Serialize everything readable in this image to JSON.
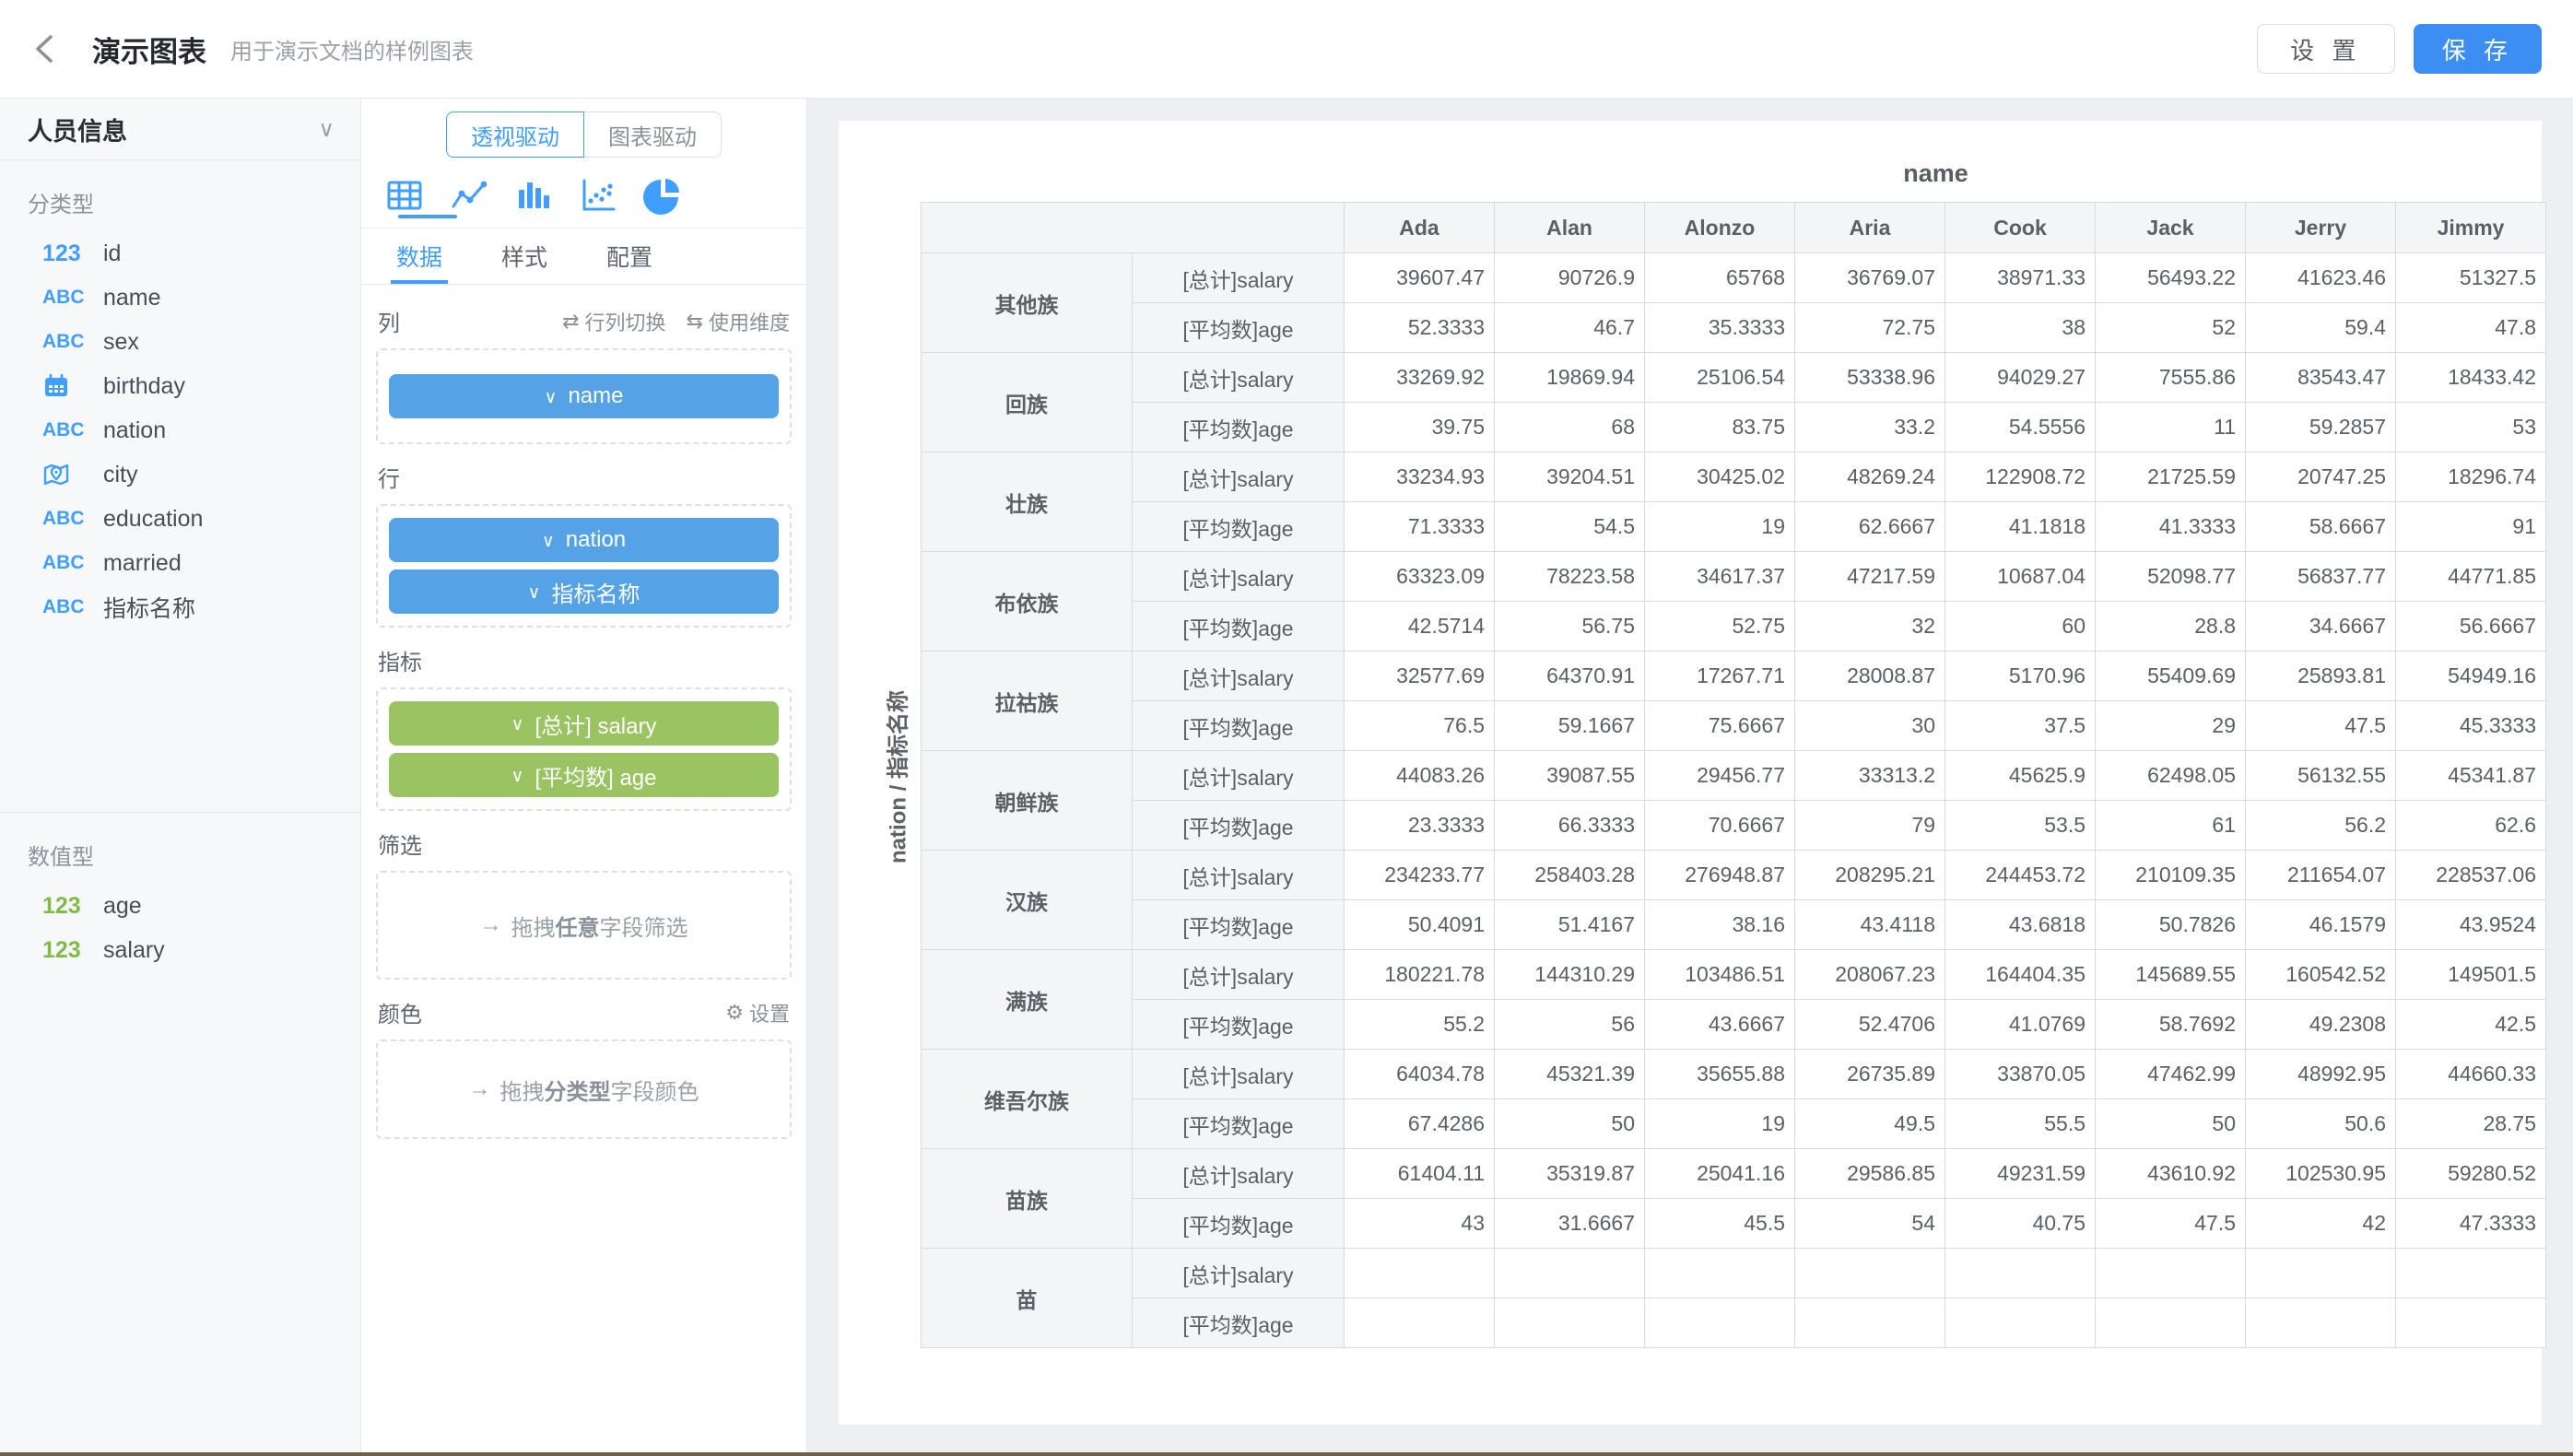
{
  "header": {
    "title": "演示图表",
    "subtitle": "用于演示文档的样例图表",
    "settings_label": "设 置",
    "save_label": "保 存"
  },
  "icons": {
    "chevron_down": "∨",
    "swap_rows_cols": "⇄",
    "use_dimension": "⇆",
    "drag_arrow": "→",
    "gear": "⚙"
  },
  "colors": {
    "accent_blue": "#409eff",
    "save_blue": "#3d8ef2",
    "pill_blue": "#56a2e6",
    "pill_green": "#9ac362",
    "numeric_green": "#7ebc47"
  },
  "dataset_panel": {
    "name": "人员信息",
    "sections": [
      {
        "label": "分类型",
        "tint": "blue",
        "fields": [
          {
            "icon": "numeric-icon",
            "name": "id"
          },
          {
            "icon": "text-icon",
            "name": "name"
          },
          {
            "icon": "text-icon",
            "name": "sex"
          },
          {
            "icon": "calendar-icon",
            "name": "birthday"
          },
          {
            "icon": "text-icon",
            "name": "nation"
          },
          {
            "icon": "location-icon",
            "name": "city"
          },
          {
            "icon": "text-icon",
            "name": "education"
          },
          {
            "icon": "text-icon",
            "name": "married"
          },
          {
            "icon": "text-icon",
            "name": "指标名称"
          }
        ]
      },
      {
        "label": "数值型",
        "tint": "green",
        "fields": [
          {
            "icon": "numeric-icon",
            "name": "age"
          },
          {
            "icon": "numeric-icon",
            "name": "salary"
          }
        ]
      }
    ]
  },
  "config_panel": {
    "mode_toggle": {
      "options": [
        "透视驱动",
        "图表驱动"
      ],
      "active": "透视驱动"
    },
    "chart_types": [
      "table",
      "line",
      "bar",
      "scatter",
      "pie"
    ],
    "active_chart_type": "table",
    "tabs": {
      "options": [
        "数据",
        "样式",
        "配置"
      ],
      "active": "数据"
    },
    "sections": {
      "columns": {
        "label": "列",
        "actions": [
          "行列切换",
          "使用维度"
        ],
        "pills": [
          {
            "text": "name",
            "color": "blue"
          }
        ]
      },
      "rows": {
        "label": "行",
        "pills": [
          {
            "text": "nation",
            "color": "blue"
          },
          {
            "text": "指标名称",
            "color": "blue"
          }
        ]
      },
      "metrics": {
        "label": "指标",
        "pills": [
          {
            "text": "[总计] salary",
            "color": "green"
          },
          {
            "text": "[平均数] age",
            "color": "green"
          }
        ]
      },
      "filter": {
        "label": "筛选",
        "placeholder_parts": [
          "拖拽",
          "任意",
          "字段筛选"
        ]
      },
      "color": {
        "label": "颜色",
        "action": "设置",
        "placeholder_parts": [
          "拖拽",
          "分类型",
          "字段颜色"
        ]
      }
    }
  },
  "chart_data": {
    "type": "table",
    "title": "name",
    "row_axis_label": "nation / 指标名称",
    "columns": [
      "Ada",
      "Alan",
      "Alonzo",
      "Aria",
      "Cook",
      "Jack",
      "Jerry",
      "Jimmy"
    ],
    "metric_labels": [
      "[总计]salary",
      "[平均数]age"
    ],
    "groups": [
      {
        "nation": "其他族",
        "salary": [
          "39607.47",
          "90726.9",
          "65768",
          "36769.07",
          "38971.33",
          "56493.22",
          "41623.46",
          "51327.5"
        ],
        "age": [
          "52.3333",
          "46.7",
          "35.3333",
          "72.75",
          "38",
          "52",
          "59.4",
          "47.8"
        ]
      },
      {
        "nation": "回族",
        "salary": [
          "33269.92",
          "19869.94",
          "25106.54",
          "53338.96",
          "94029.27",
          "7555.86",
          "83543.47",
          "18433.42"
        ],
        "age": [
          "39.75",
          "68",
          "83.75",
          "33.2",
          "54.5556",
          "11",
          "59.2857",
          "53"
        ]
      },
      {
        "nation": "壮族",
        "salary": [
          "33234.93",
          "39204.51",
          "30425.02",
          "48269.24",
          "122908.72",
          "21725.59",
          "20747.25",
          "18296.74"
        ],
        "age": [
          "71.3333",
          "54.5",
          "19",
          "62.6667",
          "41.1818",
          "41.3333",
          "58.6667",
          "91"
        ]
      },
      {
        "nation": "布依族",
        "salary": [
          "63323.09",
          "78223.58",
          "34617.37",
          "47217.59",
          "10687.04",
          "52098.77",
          "56837.77",
          "44771.85"
        ],
        "age": [
          "42.5714",
          "56.75",
          "52.75",
          "32",
          "60",
          "28.8",
          "34.6667",
          "56.6667"
        ]
      },
      {
        "nation": "拉祜族",
        "salary": [
          "32577.69",
          "64370.91",
          "17267.71",
          "28008.87",
          "5170.96",
          "55409.69",
          "25893.81",
          "54949.16"
        ],
        "age": [
          "76.5",
          "59.1667",
          "75.6667",
          "30",
          "37.5",
          "29",
          "47.5",
          "45.3333"
        ]
      },
      {
        "nation": "朝鲜族",
        "salary": [
          "44083.26",
          "39087.55",
          "29456.77",
          "33313.2",
          "45625.9",
          "62498.05",
          "56132.55",
          "45341.87"
        ],
        "age": [
          "23.3333",
          "66.3333",
          "70.6667",
          "79",
          "53.5",
          "61",
          "56.2",
          "62.6"
        ]
      },
      {
        "nation": "汉族",
        "salary": [
          "234233.77",
          "258403.28",
          "276948.87",
          "208295.21",
          "244453.72",
          "210109.35",
          "211654.07",
          "228537.06"
        ],
        "age": [
          "50.4091",
          "51.4167",
          "38.16",
          "43.4118",
          "43.6818",
          "50.7826",
          "46.1579",
          "43.9524"
        ]
      },
      {
        "nation": "满族",
        "salary": [
          "180221.78",
          "144310.29",
          "103486.51",
          "208067.23",
          "164404.35",
          "145689.55",
          "160542.52",
          "149501.5"
        ],
        "age": [
          "55.2",
          "56",
          "43.6667",
          "52.4706",
          "41.0769",
          "58.7692",
          "49.2308",
          "42.5"
        ]
      },
      {
        "nation": "维吾尔族",
        "salary": [
          "64034.78",
          "45321.39",
          "35655.88",
          "26735.89",
          "33870.05",
          "47462.99",
          "48992.95",
          "44660.33"
        ],
        "age": [
          "67.4286",
          "50",
          "19",
          "49.5",
          "55.5",
          "50",
          "50.6",
          "28.75"
        ]
      },
      {
        "nation": "苗族",
        "salary": [
          "61404.11",
          "35319.87",
          "25041.16",
          "29586.85",
          "49231.59",
          "43610.92",
          "102530.95",
          "59280.52"
        ],
        "age": [
          "43",
          "31.6667",
          "45.5",
          "54",
          "40.75",
          "47.5",
          "42",
          "47.3333"
        ]
      },
      {
        "nation": "苗",
        "salary": [
          "",
          "",
          "",
          "",
          "",
          "",
          "",
          ""
        ],
        "age": [
          "",
          "",
          "",
          "",
          "",
          "",
          "",
          ""
        ],
        "partial": true
      }
    ]
  }
}
